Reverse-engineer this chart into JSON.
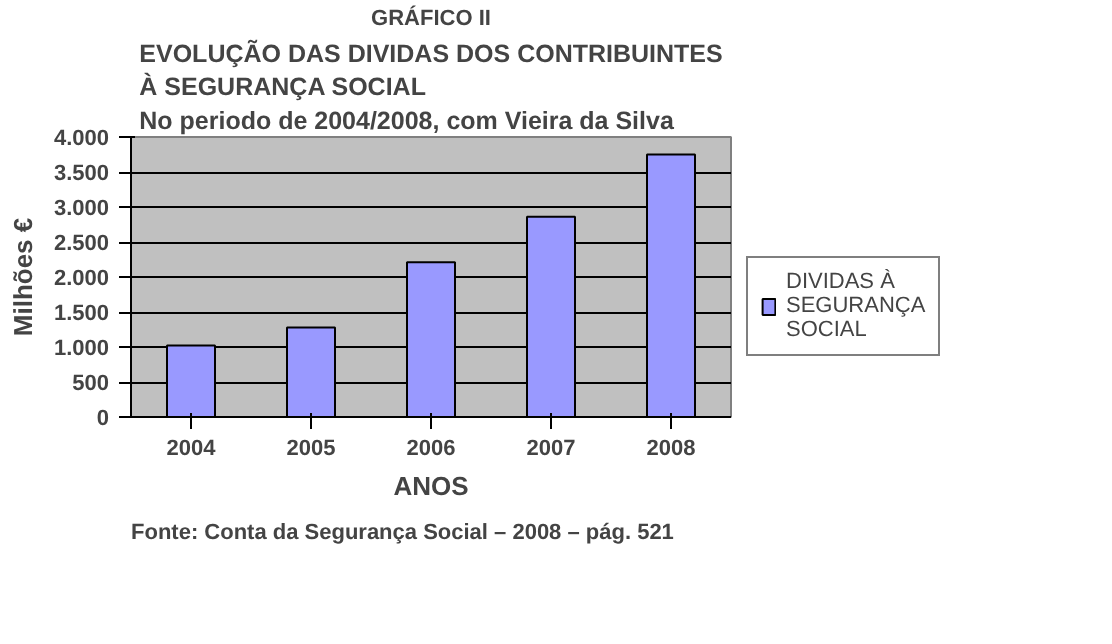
{
  "chart_data": {
    "type": "bar",
    "title": "GRÁFICO II",
    "subtitle": "EVOLUÇÃO DAS DIVIDAS DOS CONTRIBUINTES\nÀ SEGURANÇA SOCIAL\nNo periodo de 2004/2008, com Vieira da Silva",
    "xlabel": "ANOS",
    "ylabel": "Milhões €",
    "categories": [
      "2004",
      "2005",
      "2006",
      "2007",
      "2008"
    ],
    "series": [
      {
        "name": "DIVIDAS À SEGURANÇA SOCIAL",
        "color": "#9999ff",
        "values": [
          1020,
          1280,
          2210,
          2860,
          3750
        ]
      }
    ],
    "ylim": [
      0,
      4000
    ],
    "yticks": [
      0,
      {
        "value": 500,
        "label": "500"
      },
      {
        "value": 1000,
        "label": "1.000"
      },
      {
        "value": 1500,
        "label": "1.500"
      },
      {
        "value": 2000,
        "label": "2.000"
      },
      {
        "value": 2500,
        "label": "2.500"
      },
      {
        "value": 3000,
        "label": "3.000"
      },
      {
        "value": 3500,
        "label": "3.500"
      },
      {
        "value": 4000,
        "label": "4.000"
      }
    ],
    "grid": "y",
    "legend": "right",
    "annotations": [
      "Fonte:   Conta da Segurança Social – 2008 – pág. 521"
    ]
  }
}
